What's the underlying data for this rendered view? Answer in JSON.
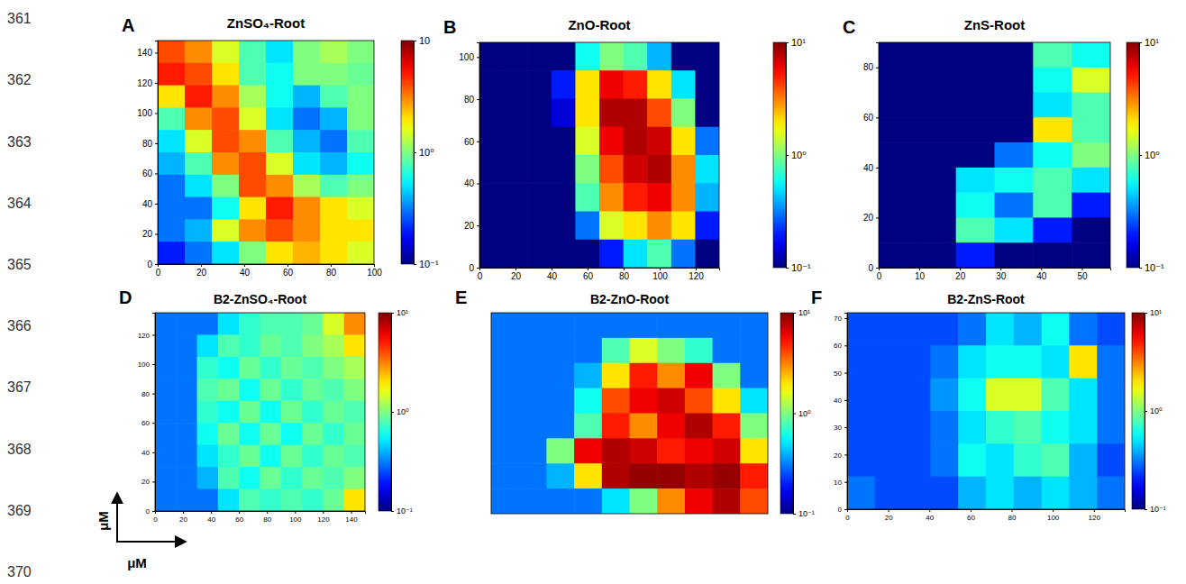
{
  "line_numbers": [
    361,
    362,
    363,
    364,
    365,
    366,
    367,
    368,
    369,
    370
  ],
  "axis_indicator": {
    "x_label": "μM",
    "y_label": "μM"
  },
  "chart_data": [
    {
      "type": "heatmap",
      "panel": "A",
      "title": "ZnSO₄-Root",
      "xlim": [
        0,
        100
      ],
      "xticks": [
        0,
        20,
        40,
        60,
        80,
        100
      ],
      "ylim": [
        0,
        148
      ],
      "yticks": [
        0,
        20,
        40,
        60,
        80,
        100,
        120,
        140
      ],
      "colorbar": {
        "range": [
          0.1,
          10
        ],
        "ticks": [
          {
            "value": 0.1,
            "label": "10⁻¹"
          },
          {
            "value": 1,
            "label": "10⁰"
          },
          {
            "value": 10,
            "label": "10"
          }
        ]
      },
      "cells": [
        [
          4,
          3,
          1.5,
          0.8,
          0.5,
          1,
          1.2,
          1
        ],
        [
          5,
          4,
          2,
          0.8,
          0.6,
          1,
          1,
          0.9
        ],
        [
          2,
          5,
          3,
          1.2,
          0.6,
          0.4,
          0.8,
          1
        ],
        [
          0.8,
          3,
          4,
          1.5,
          0.5,
          0.3,
          0.4,
          1
        ],
        [
          0.5,
          1.5,
          4,
          3,
          0.8,
          0.4,
          0.3,
          0.8
        ],
        [
          0.4,
          0.8,
          3,
          4,
          1.5,
          0.5,
          0.4,
          0.6
        ],
        [
          0.3,
          0.5,
          1,
          4,
          3,
          1.2,
          0.8,
          1
        ],
        [
          0.3,
          0.3,
          0.6,
          2,
          5,
          3,
          2,
          1.5
        ],
        [
          0.3,
          0.4,
          1.5,
          3,
          4,
          3,
          2,
          2
        ],
        [
          0.2,
          0.3,
          0.5,
          1,
          2,
          2.5,
          2,
          1.5
        ]
      ]
    },
    {
      "type": "heatmap",
      "panel": "B",
      "title": "ZnO-Root",
      "xlim": [
        0,
        133
      ],
      "xticks": [
        0,
        20,
        40,
        60,
        80,
        100,
        120
      ],
      "ylim": [
        0,
        107
      ],
      "yticks": [
        0,
        20,
        40,
        60,
        80,
        100
      ],
      "colorbar": {
        "range": [
          0.1,
          10
        ],
        "ticks": [
          {
            "value": 0.1,
            "label": "10⁻¹"
          },
          {
            "value": 1,
            "label": "10⁰"
          },
          {
            "value": 10,
            "label": "10¹"
          }
        ]
      },
      "cells": [
        [
          0.1,
          0.1,
          0.1,
          0.1,
          0.6,
          1,
          0.8,
          0.4,
          0.1,
          0.1
        ],
        [
          0.1,
          0.1,
          0.1,
          0.2,
          2,
          6,
          5,
          2,
          0.5,
          0.1
        ],
        [
          0.1,
          0.1,
          0.1,
          0.15,
          2,
          8,
          8,
          4,
          1,
          0.1
        ],
        [
          0.1,
          0.1,
          0.1,
          0.1,
          1.5,
          6,
          8,
          7,
          2,
          0.3
        ],
        [
          0.1,
          0.1,
          0.1,
          0.1,
          1,
          4,
          7,
          8,
          3,
          0.5
        ],
        [
          0.1,
          0.1,
          0.1,
          0.1,
          0.8,
          3,
          5,
          6,
          3,
          0.4
        ],
        [
          0.1,
          0.1,
          0.1,
          0.1,
          0.3,
          1.5,
          2,
          3,
          2,
          0.2
        ],
        [
          0.1,
          0.1,
          0.1,
          0.1,
          0.1,
          0.2,
          0.5,
          0.8,
          0.3,
          0.1
        ]
      ]
    },
    {
      "type": "heatmap",
      "panel": "C",
      "title": "ZnS-Root",
      "xlim": [
        0,
        57
      ],
      "xticks": [
        0,
        10,
        20,
        30,
        40,
        50
      ],
      "ylim": [
        0,
        90
      ],
      "yticks": [
        0,
        20,
        40,
        60,
        80
      ],
      "colorbar": {
        "range": [
          0.1,
          10
        ],
        "ticks": [
          {
            "value": 0.1,
            "label": "10⁻¹"
          },
          {
            "value": 1,
            "label": "10⁰"
          },
          {
            "value": 10,
            "label": "10¹"
          }
        ]
      },
      "cells": [
        [
          0.1,
          0.1,
          0.1,
          0.1,
          0.8,
          0.6
        ],
        [
          0.1,
          0.1,
          0.1,
          0.1,
          0.6,
          1.5
        ],
        [
          0.1,
          0.1,
          0.1,
          0.1,
          0.5,
          0.8
        ],
        [
          0.1,
          0.1,
          0.1,
          0.1,
          2,
          0.8
        ],
        [
          0.1,
          0.1,
          0.1,
          0.3,
          0.6,
          1
        ],
        [
          0.1,
          0.1,
          0.5,
          0.6,
          0.8,
          0.5
        ],
        [
          0.1,
          0.1,
          0.6,
          0.3,
          0.8,
          0.2
        ],
        [
          0.1,
          0.1,
          0.8,
          0.5,
          0.2,
          0.1
        ],
        [
          0.1,
          0.1,
          0.2,
          0.1,
          0.1,
          0.1
        ]
      ]
    },
    {
      "type": "heatmap",
      "panel": "D",
      "title": "B2-ZnSO₄-Root",
      "xlim": [
        0,
        150
      ],
      "xticks": [
        0,
        20,
        40,
        60,
        80,
        100,
        120,
        140
      ],
      "ylim": [
        0,
        135
      ],
      "yticks": [
        0,
        20,
        40,
        60,
        80,
        100,
        120
      ],
      "colorbar": {
        "range": [
          0.1,
          10
        ],
        "ticks": [
          {
            "value": 0.1,
            "label": "10⁻¹"
          },
          {
            "value": 1,
            "label": "10⁰"
          },
          {
            "value": 10,
            "label": "10¹"
          }
        ]
      },
      "cells": [
        [
          0.3,
          0.3,
          0.3,
          0.5,
          0.7,
          0.8,
          0.8,
          0.9,
          1.5,
          3
        ],
        [
          0.3,
          0.3,
          0.5,
          0.8,
          0.7,
          0.9,
          0.8,
          1,
          1.2,
          2
        ],
        [
          0.3,
          0.3,
          0.7,
          0.6,
          0.9,
          0.7,
          0.9,
          0.8,
          1,
          1.2
        ],
        [
          0.3,
          0.3,
          0.8,
          0.9,
          0.6,
          0.9,
          0.7,
          0.9,
          0.8,
          1
        ],
        [
          0.3,
          0.3,
          0.7,
          0.6,
          0.9,
          0.6,
          0.9,
          0.7,
          0.9,
          0.8
        ],
        [
          0.3,
          0.3,
          0.6,
          0.9,
          0.6,
          0.9,
          0.6,
          0.9,
          0.7,
          0.9
        ],
        [
          0.3,
          0.3,
          0.5,
          0.7,
          0.9,
          0.6,
          0.9,
          0.7,
          0.9,
          0.8
        ],
        [
          0.3,
          0.3,
          0.4,
          0.8,
          0.6,
          0.9,
          0.7,
          0.9,
          0.8,
          1
        ],
        [
          0.3,
          0.3,
          0.3,
          0.5,
          0.8,
          0.7,
          0.8,
          0.7,
          0.9,
          2
        ]
      ]
    },
    {
      "type": "heatmap",
      "panel": "E",
      "title": "B2-ZnO-Root",
      "tick_labels": false,
      "colorbar": {
        "range": [
          0.1,
          10
        ],
        "ticks": [
          {
            "value": 0.1,
            "label": "10⁻¹"
          },
          {
            "value": 1,
            "label": "10⁰"
          },
          {
            "value": 10,
            "label": "10¹"
          }
        ]
      },
      "cells": [
        [
          0.3,
          0.3,
          0.3,
          0.3,
          0.3,
          0.3,
          0.3,
          0.3,
          0.3,
          0.3
        ],
        [
          0.3,
          0.3,
          0.3,
          0.3,
          0.8,
          1.5,
          1,
          0.7,
          0.3,
          0.3
        ],
        [
          0.3,
          0.3,
          0.3,
          0.4,
          2,
          5,
          3,
          6,
          1,
          0.3
        ],
        [
          0.3,
          0.3,
          0.3,
          0.6,
          4,
          6,
          7,
          4,
          2,
          0.5
        ],
        [
          0.3,
          0.3,
          0.3,
          0.8,
          5,
          3,
          6,
          8,
          5,
          1
        ],
        [
          0.3,
          0.3,
          1,
          6,
          8,
          7,
          5,
          6,
          7,
          2
        ],
        [
          0.3,
          0.3,
          0.4,
          2,
          8,
          9,
          9,
          8,
          9,
          5
        ],
        [
          0.3,
          0.3,
          0.3,
          0.3,
          0.5,
          1,
          3,
          6,
          8,
          4
        ]
      ]
    },
    {
      "type": "heatmap",
      "panel": "F",
      "title": "B2-ZnS-Root",
      "xlim": [
        0,
        135
      ],
      "xticks": [
        0,
        20,
        40,
        60,
        80,
        100,
        120
      ],
      "ylim": [
        0,
        72
      ],
      "yticks": [
        0,
        10,
        20,
        30,
        40,
        50,
        60,
        70
      ],
      "colorbar": {
        "range": [
          0.1,
          10
        ],
        "ticks": [
          {
            "value": 0.1,
            "label": "10⁻¹"
          },
          {
            "value": 1,
            "label": "10⁰"
          },
          {
            "value": 10,
            "label": "10¹"
          }
        ]
      },
      "cells": [
        [
          0.25,
          0.25,
          0.25,
          0.25,
          0.3,
          0.5,
          0.4,
          0.6,
          0.3,
          0.25
        ],
        [
          0.25,
          0.25,
          0.25,
          0.3,
          0.5,
          0.6,
          0.6,
          0.5,
          2,
          0.3
        ],
        [
          0.25,
          0.25,
          0.25,
          0.35,
          0.6,
          1.5,
          1.5,
          0.8,
          0.5,
          0.3
        ],
        [
          0.25,
          0.25,
          0.25,
          0.3,
          0.5,
          0.7,
          0.8,
          0.6,
          0.5,
          0.3
        ],
        [
          0.25,
          0.25,
          0.25,
          0.3,
          0.6,
          0.5,
          0.7,
          0.8,
          0.4,
          0.25
        ],
        [
          0.3,
          0.25,
          0.25,
          0.25,
          0.4,
          0.5,
          0.4,
          0.5,
          0.4,
          0.3
        ]
      ]
    }
  ]
}
